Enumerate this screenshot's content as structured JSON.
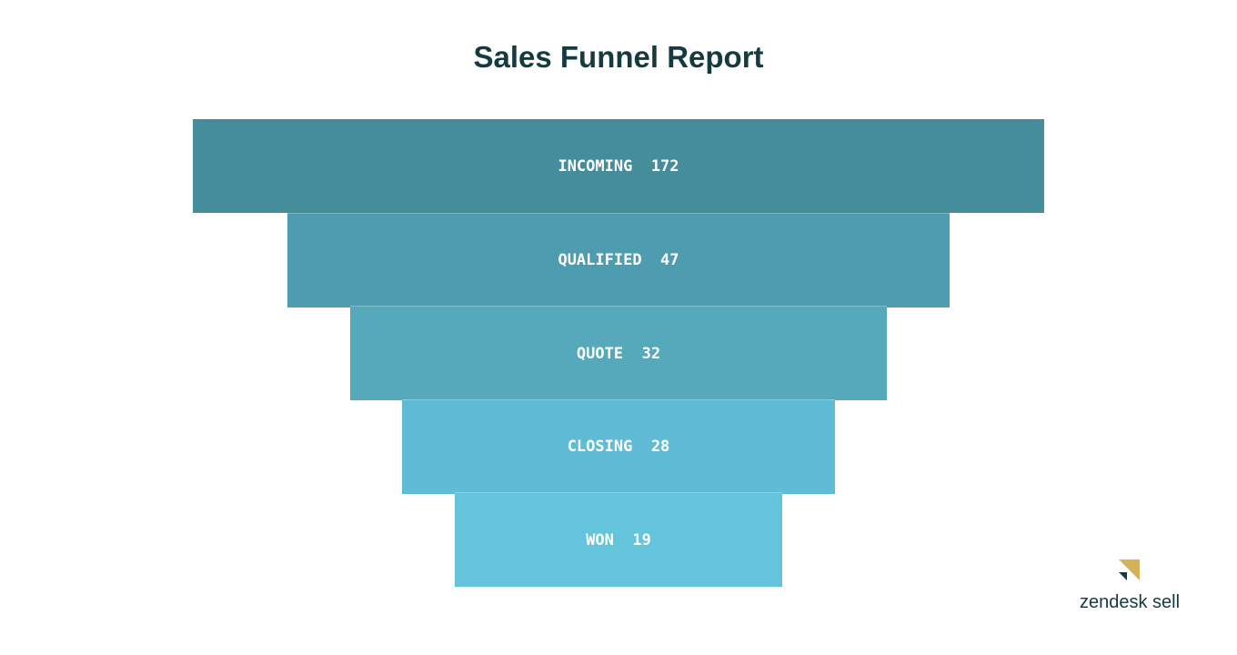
{
  "chart_data": {
    "type": "funnel",
    "title": "Sales Funnel Report",
    "categories": [
      "INCOMING",
      "QUALIFIED",
      "QUOTE",
      "CLOSING",
      "WON"
    ],
    "values": [
      172,
      47,
      32,
      28,
      19
    ],
    "colors": [
      "#468d9c",
      "#4e9caf",
      "#56a8bb",
      "#5fbcd4",
      "#63c4dc"
    ]
  },
  "logo": {
    "text": "zendesk sell",
    "colors": [
      "#d4b15c",
      "#153a40"
    ]
  }
}
